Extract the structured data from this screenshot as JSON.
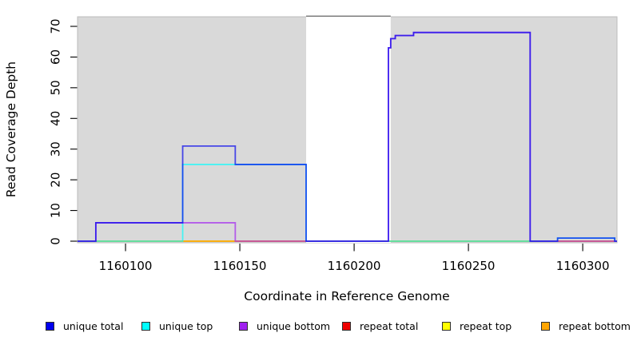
{
  "chart_data": {
    "type": "line",
    "subtype": "step-coverage-plot",
    "title": "",
    "xlabel": "Coordinate in Reference Genome",
    "ylabel": "Read Coverage Depth",
    "xlim": [
      1160079,
      1160315
    ],
    "ylim": [
      0,
      73
    ],
    "x_ticks": [
      1160100,
      1160150,
      1160200,
      1160250,
      1160300
    ],
    "y_ticks": [
      0,
      10,
      20,
      30,
      40,
      50,
      60,
      70
    ],
    "grid": false,
    "plot_background": "#d9d9d9",
    "no_data_region": {
      "x_start": 1160179,
      "x_end": 1160216,
      "fill": "#ffffff",
      "top_edge_color": "#7d7d7d"
    },
    "series": [
      {
        "name": "repeat total",
        "color": "#ee0000",
        "steps": [
          [
            1160079,
            0
          ]
        ]
      },
      {
        "name": "repeat top",
        "color": "#ffff00",
        "steps": [
          [
            1160079,
            0
          ]
        ]
      },
      {
        "name": "repeat bottom",
        "color": "#ffa500",
        "steps": [
          [
            1160079,
            0
          ]
        ]
      },
      {
        "name": "unique top",
        "color": "#00ffff",
        "steps": [
          [
            1160079,
            0
          ],
          [
            1160125,
            25
          ],
          [
            1160179,
            0
          ],
          [
            1160289,
            1
          ],
          [
            1160314,
            0
          ]
        ]
      },
      {
        "name": "unique bottom",
        "color": "#a020f0",
        "steps": [
          [
            1160079,
            0
          ],
          [
            1160087,
            6
          ],
          [
            1160148,
            0
          ],
          [
            1160215,
            63
          ],
          [
            1160216,
            66
          ],
          [
            1160218,
            67
          ],
          [
            1160226,
            68
          ],
          [
            1160277,
            0
          ]
        ]
      },
      {
        "name": "unique total",
        "color": "#0000ee",
        "steps": [
          [
            1160079,
            0
          ],
          [
            1160087,
            6
          ],
          [
            1160125,
            31
          ],
          [
            1160148,
            25
          ],
          [
            1160179,
            0
          ],
          [
            1160215,
            63
          ],
          [
            1160216,
            66
          ],
          [
            1160218,
            67
          ],
          [
            1160226,
            68
          ],
          [
            1160277,
            0
          ],
          [
            1160289,
            1
          ],
          [
            1160314,
            0
          ]
        ]
      }
    ],
    "legend_position": "bottom",
    "legend": [
      {
        "label": "unique total",
        "color": "#0000ee"
      },
      {
        "label": "unique top",
        "color": "#00ffff"
      },
      {
        "label": "unique bottom",
        "color": "#a020f0"
      },
      {
        "label": "repeat total",
        "color": "#ee0000"
      },
      {
        "label": "repeat top",
        "color": "#ffff00"
      },
      {
        "label": "repeat bottom",
        "color": "#ffa500"
      }
    ]
  }
}
